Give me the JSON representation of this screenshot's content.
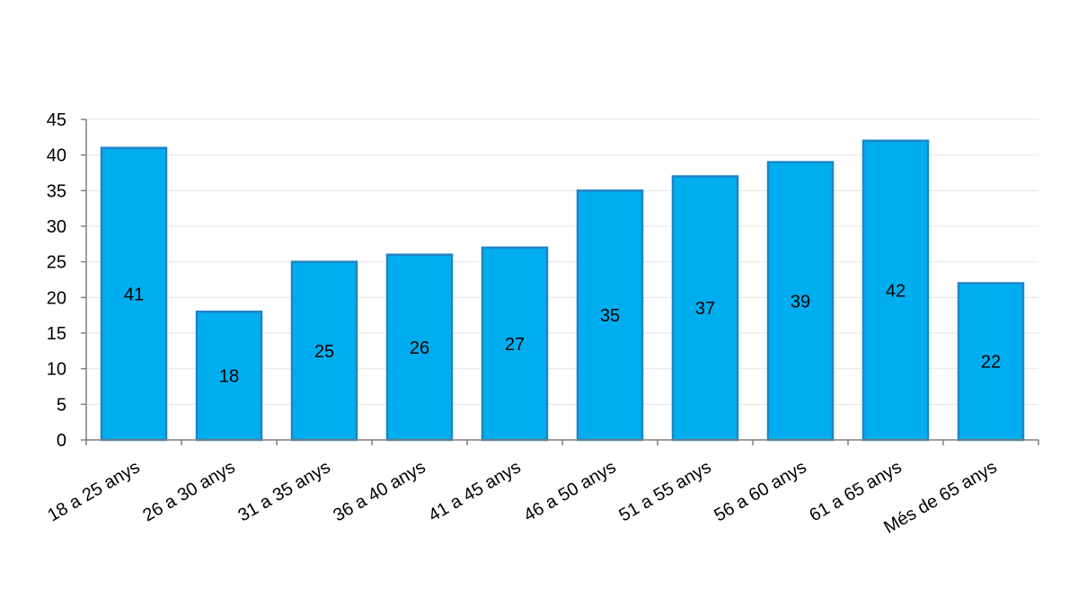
{
  "chart_data": {
    "type": "bar",
    "categories": [
      "18 a 25 anys",
      "26 a 30 anys",
      "31 a 35 anys",
      "36 a 40 anys",
      "41 a 45 anys",
      "46 a 50 anys",
      "51 a 55 anys",
      "56 a 60 anys",
      "61 a 65 anys",
      "Més de 65 anys"
    ],
    "values": [
      41,
      18,
      25,
      26,
      27,
      35,
      37,
      39,
      42,
      22
    ],
    "data_labels": [
      "41",
      "18",
      "25",
      "26",
      "27",
      "35",
      "37",
      "39",
      "42",
      "22"
    ],
    "yticks": [
      "0",
      "5",
      "10",
      "15",
      "20",
      "25",
      "30",
      "35",
      "40",
      "45"
    ],
    "ylim": [
      0,
      45
    ],
    "grid": true,
    "title": "",
    "xlabel": "",
    "ylabel": "",
    "colors": {
      "bar_fill": "#00AEEF",
      "bar_stroke": "#1F84C6",
      "axis": "#7F7F7F",
      "grid": "#E6E6E6"
    }
  }
}
